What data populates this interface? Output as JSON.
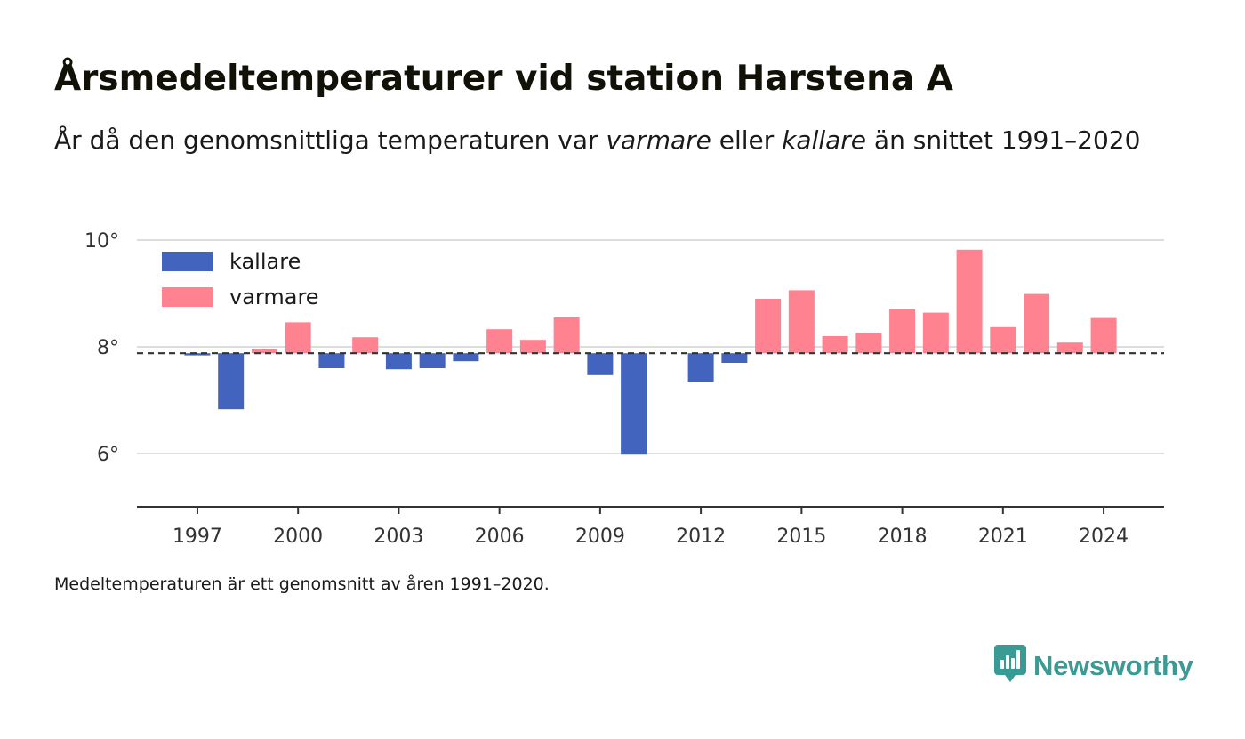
{
  "title": "Årsmedeltemperaturer vid station Harstena A",
  "subtitle": {
    "part1": "År då den genomsnittliga temperaturen var ",
    "warm_word": "varmare",
    "part2": " eller ",
    "cold_word": "kallare",
    "part3": " än snittet 1991–2020"
  },
  "footnote": "Medeltemperaturen är ett genomsnitt av åren 1991–2020.",
  "brand": {
    "name": "Newsworthy",
    "icon": "newsworthy-logo-icon",
    "color": "#3a9a94"
  },
  "colors": {
    "cold": "#4263be",
    "warm": "#ff8290",
    "baseline": "#333333",
    "grid": "#dddddd",
    "axis": "#333333"
  },
  "chart_data": {
    "type": "bar",
    "baseline": 7.88,
    "baseline_style": "dashed",
    "x": [
      1996,
      1997,
      1998,
      1999,
      2000,
      2001,
      2002,
      2003,
      2004,
      2005,
      2006,
      2007,
      2008,
      2009,
      2010,
      2011,
      2012,
      2013,
      2014,
      2015,
      2016,
      2017,
      2018,
      2019,
      2020,
      2021,
      2022,
      2023,
      2024
    ],
    "values": [
      null,
      7.84,
      6.83,
      7.96,
      8.46,
      7.6,
      8.18,
      7.58,
      7.6,
      7.73,
      8.33,
      8.13,
      8.55,
      7.47,
      5.98,
      null,
      7.35,
      7.7,
      8.9,
      9.06,
      8.2,
      8.26,
      8.7,
      8.64,
      9.82,
      8.37,
      8.99,
      8.08,
      8.54
    ],
    "series": [
      {
        "name": "kallare",
        "color": "#4263be"
      },
      {
        "name": "varmare",
        "color": "#ff8290"
      }
    ],
    "xticks": [
      1997,
      2000,
      2003,
      2006,
      2009,
      2012,
      2015,
      2018,
      2021,
      2024
    ],
    "xtick_labels": [
      "1997",
      "2000",
      "2003",
      "2006",
      "2009",
      "2012",
      "2015",
      "2018",
      "2021",
      "2024"
    ],
    "yticks": [
      6,
      8,
      10
    ],
    "ytick_labels": [
      "6°",
      "8°",
      "10°"
    ],
    "xlim": [
      1995.2,
      2025.8
    ],
    "ylim": [
      5.0,
      10.0
    ],
    "grid": true,
    "legend_position": "top-left",
    "xlabel": "",
    "ylabel": ""
  }
}
